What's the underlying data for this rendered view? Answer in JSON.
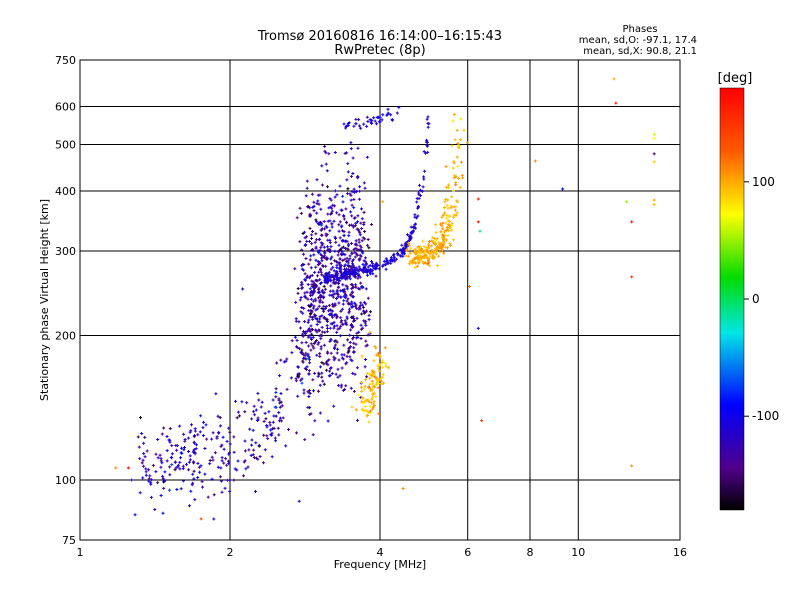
{
  "chart_data": {
    "type": "scatter",
    "title": "Tromsø 20160816 16:14:00–16:15:43",
    "subtitle": "RwPretec (8p)",
    "xlabel": "Frequency [MHz]",
    "ylabel": "Stationary phase Virtual Height [km]",
    "x_scale": "log2",
    "y_scale": "log",
    "xlim": [
      1,
      16
    ],
    "ylim": [
      75,
      750
    ],
    "x_ticks": [
      1,
      2,
      4,
      6,
      8,
      10,
      16
    ],
    "y_ticks": [
      75,
      100,
      200,
      300,
      400,
      500,
      600,
      750
    ],
    "x_grid": [
      1,
      2,
      4,
      6,
      8,
      10,
      16
    ],
    "y_grid": [
      100,
      200,
      300,
      400,
      500,
      600
    ],
    "grid": true,
    "stats_title": "Phases",
    "stats_lines": [
      "mean, sd,O: -97.1, 17.4",
      "mean, sd,X:  90.8, 21.1"
    ],
    "colorbar": {
      "label": "[deg]",
      "range": [
        -180,
        180
      ],
      "ticks": [
        "100",
        "0",
        "-100"
      ],
      "tick_values": [
        100,
        0,
        -100
      ]
    },
    "traces": [
      {
        "x": [
          1.32,
          1.4,
          1.5,
          1.6,
          1.7,
          1.8,
          1.9,
          2.0,
          2.1,
          2.2,
          2.3,
          2.4,
          2.5,
          2.6,
          2.7,
          2.8,
          2.9,
          3.0
        ],
        "y": [
          108,
          107,
          109,
          110,
          111,
          111,
          110,
          112,
          114,
          118,
          124,
          131,
          140,
          152,
          166,
          185,
          210,
          245
        ],
        "spread_y": 0.1,
        "spread_x": 0.02,
        "phase": -120,
        "phase_sd": 22,
        "n": 320
      },
      {
        "x": [
          1.5,
          1.6,
          1.7
        ],
        "y": [
          113,
          118,
          122
        ],
        "spread_y": 0.04,
        "spread_x": 0.02,
        "phase": -110,
        "phase_sd": 10,
        "n": 20
      },
      {
        "x": [
          2.8,
          2.9,
          3.0,
          3.1,
          3.2,
          3.3,
          3.4,
          3.5,
          3.6,
          3.7
        ],
        "y": [
          230,
          240,
          250,
          255,
          258,
          260,
          262,
          265,
          268,
          272
        ],
        "spread_y": 0.25,
        "spread_x": 0.025,
        "phase": -128,
        "phase_sd": 18,
        "n": 900
      },
      {
        "x": [
          3.1,
          3.2,
          3.3,
          3.4,
          3.5,
          3.6,
          3.7,
          3.8,
          3.9,
          4.0,
          4.1,
          4.2,
          4.3,
          4.4,
          4.5,
          4.6,
          4.7,
          4.8,
          4.9,
          5.0,
          5.02
        ],
        "y": [
          262,
          264,
          266,
          268,
          270,
          272,
          274,
          276,
          278,
          280,
          282,
          285,
          290,
          297,
          306,
          320,
          342,
          380,
          440,
          540,
          630
        ],
        "spread_y": 0.012,
        "spread_x": 0.004,
        "phase": -110,
        "phase_sd": 6,
        "n": 260
      },
      {
        "x": [
          3.35,
          3.5,
          3.7,
          3.9,
          4.1,
          4.3,
          4.45
        ],
        "y": [
          550,
          548,
          553,
          558,
          565,
          578,
          595
        ],
        "spread_y": 0.015,
        "spread_x": 0.01,
        "phase": -105,
        "phase_sd": 6,
        "n": 40
      },
      {
        "x": [
          4.6,
          4.8,
          5.0,
          5.2,
          5.4,
          5.5,
          5.6,
          5.65,
          5.7,
          5.75
        ],
        "y": [
          292,
          294,
          298,
          305,
          322,
          340,
          370,
          410,
          470,
          560
        ],
        "spread_y": 0.03,
        "spread_x": 0.02,
        "phase": 98,
        "phase_sd": 8,
        "n": 260
      },
      {
        "x": [
          3.7,
          3.8,
          3.9,
          4.0
        ],
        "y": [
          140,
          148,
          162,
          180
        ],
        "spread_y": 0.05,
        "spread_x": 0.02,
        "phase": 95,
        "phase_sd": 10,
        "n": 110
      }
    ],
    "isolated_points": [
      {
        "x": 1.25,
        "y": 106,
        "phase": 175
      },
      {
        "x": 1.18,
        "y": 106,
        "phase": 110
      },
      {
        "x": 1.27,
        "y": 100,
        "phase": -110
      },
      {
        "x": 1.75,
        "y": 83,
        "phase": 140
      },
      {
        "x": 2.12,
        "y": 250,
        "phase": -100
      },
      {
        "x": 4.05,
        "y": 380,
        "phase": 100
      },
      {
        "x": 4.45,
        "y": 96,
        "phase": 110
      },
      {
        "x": 6.05,
        "y": 253,
        "phase": 120
      },
      {
        "x": 6.3,
        "y": 385,
        "phase": 160
      },
      {
        "x": 6.3,
        "y": 345,
        "phase": 170
      },
      {
        "x": 6.35,
        "y": 330,
        "phase": -10
      },
      {
        "x": 6.3,
        "y": 207,
        "phase": -110
      },
      {
        "x": 6.4,
        "y": 133,
        "phase": 150
      },
      {
        "x": 8.2,
        "y": 462,
        "phase": 110
      },
      {
        "x": 9.3,
        "y": 404,
        "phase": -90
      },
      {
        "x": 11.8,
        "y": 685,
        "phase": 100
      },
      {
        "x": 11.9,
        "y": 610,
        "phase": 165
      },
      {
        "x": 12.5,
        "y": 380,
        "phase": 50
      },
      {
        "x": 12.8,
        "y": 345,
        "phase": 170
      },
      {
        "x": 12.8,
        "y": 265,
        "phase": 150
      },
      {
        "x": 12.8,
        "y": 107,
        "phase": 110
      },
      {
        "x": 14.2,
        "y": 525,
        "phase": 60
      },
      {
        "x": 14.2,
        "y": 515,
        "phase": 70
      },
      {
        "x": 14.2,
        "y": 478,
        "phase": -150
      },
      {
        "x": 14.2,
        "y": 460,
        "phase": 90
      },
      {
        "x": 14.2,
        "y": 383,
        "phase": 100
      },
      {
        "x": 14.2,
        "y": 375,
        "phase": 95
      }
    ]
  }
}
